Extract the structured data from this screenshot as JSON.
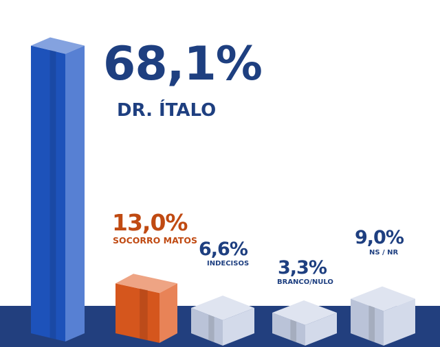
{
  "chart_data": {
    "type": "bar",
    "categories": [
      "DR. ÍTALO",
      "SOCORRO MATOS",
      "INDECISOS",
      "BRANCO/NULO",
      "NS / NR"
    ],
    "values": [
      68.1,
      13.0,
      6.6,
      3.3,
      9.0
    ],
    "value_labels": [
      "68,1%",
      "13,0%",
      "6,6%",
      "3,3%",
      "9,0%"
    ],
    "colors": [
      "#1f56c4",
      "#e05a1f",
      "#c4cde3",
      "#c4cde3",
      "#c4cde3"
    ],
    "label_colors": [
      "#1e3f80",
      "#c04a12",
      "#1e3f80",
      "#1e3f80",
      "#1e3f80"
    ],
    "floor_color": "#223f7e",
    "title": "",
    "xlabel": "",
    "ylabel": "",
    "ylim": [
      0,
      70
    ],
    "grid": false,
    "legend": "none"
  }
}
